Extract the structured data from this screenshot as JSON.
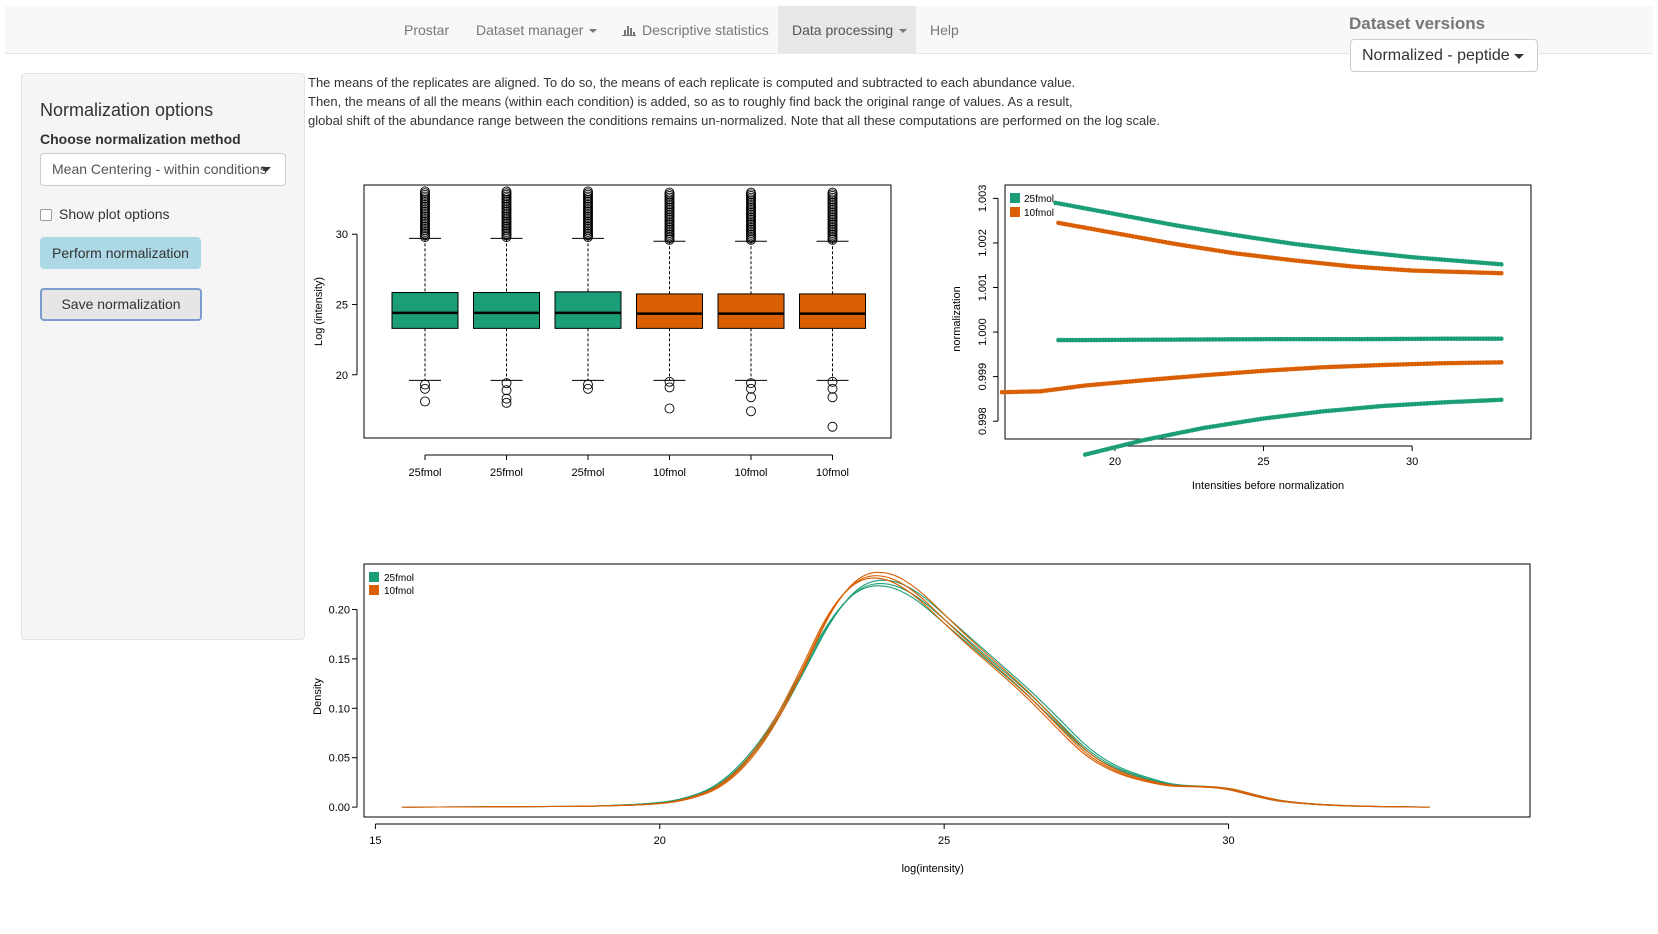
{
  "navbar": {
    "items": [
      {
        "label": "Prostar",
        "dropdown": false,
        "active": false
      },
      {
        "label": "Dataset manager",
        "dropdown": true,
        "active": false
      },
      {
        "label": "Descriptive statistics",
        "icon": "bar-chart-icon",
        "dropdown": false,
        "active": false
      },
      {
        "label": "Data processing",
        "dropdown": true,
        "active": true
      },
      {
        "label": "Help",
        "dropdown": false,
        "active": false
      }
    ],
    "versions_label": "Dataset versions",
    "versions_value": "Normalized - peptide"
  },
  "sidebar": {
    "title": "Normalization options",
    "method_label": "Choose normalization method",
    "method_value": "Mean Centering - within conditions",
    "show_plot_options": "Show plot options",
    "show_plot_options_checked": false,
    "perform_button": "Perform normalization",
    "save_button": "Save normalization"
  },
  "description": [
    "The means of the replicates are aligned. To do so, the means of each replicate is computed and subtracted to each abundance value.",
    "Then, the means of all the means (within each condition) is added, so as to roughly find back the original range of values. As a result,",
    "global shift of the abundance range between the conditions remains un-normalized. Note that all these computations are performed on the log scale."
  ],
  "colors": {
    "cond_25fmol": "#1b9e77",
    "cond_10fmol": "#d95f02",
    "accent_button": "#add8e6"
  },
  "chart_data": [
    {
      "type": "boxplot",
      "ylabel": "Log (intensity)",
      "xlabel": "",
      "ylim": [
        15.5,
        33.5
      ],
      "yticks": [
        20,
        25,
        30
      ],
      "categories": [
        "25fmol",
        "25fmol",
        "25fmol",
        "10fmol",
        "10fmol",
        "10fmol"
      ],
      "conditions": [
        "25fmol",
        "25fmol",
        "25fmol",
        "10fmol",
        "10fmol",
        "10fmol"
      ],
      "q1": [
        23.3,
        23.3,
        23.3,
        23.3,
        23.3,
        23.3
      ],
      "median": [
        24.4,
        24.4,
        24.4,
        24.35,
        24.35,
        24.35
      ],
      "q3": [
        25.85,
        25.85,
        25.9,
        25.75,
        25.75,
        25.75
      ],
      "whisker_low": [
        19.6,
        19.6,
        19.6,
        19.6,
        19.6,
        19.6
      ],
      "whisker_high": [
        29.7,
        29.7,
        29.7,
        29.5,
        29.5,
        29.5
      ],
      "outliers_low": [
        [
          19.3,
          19.0,
          18.1
        ],
        [
          19.4,
          18.9,
          18.3,
          18.0
        ],
        [
          19.3,
          19.0
        ],
        [
          19.5,
          19.1,
          17.6
        ],
        [
          19.4,
          19.0,
          18.4,
          17.4
        ],
        [
          19.5,
          19.0,
          18.4,
          16.3
        ]
      ],
      "outliers_high_range": [
        [
          29.8,
          33.1
        ],
        [
          29.8,
          33.1
        ],
        [
          29.8,
          33.1
        ],
        [
          29.6,
          33.0
        ],
        [
          29.6,
          33.0
        ],
        [
          29.6,
          33.0
        ]
      ]
    },
    {
      "type": "scatter",
      "xlabel": "Intensities before normalization",
      "ylabel": "normalization",
      "xlim": [
        16.3,
        34.0
      ],
      "ylim": [
        0.9976,
        1.0033
      ],
      "xticks": [
        20,
        25,
        30
      ],
      "yticks": [
        0.998,
        0.999,
        1.0,
        1.001,
        1.002,
        1.003
      ],
      "legend_position": "top-left",
      "series": [
        {
          "name": "25fmol",
          "points": [
            [
              18.0,
              1.0029
            ],
            [
              20,
              1.00265
            ],
            [
              22,
              1.0024
            ],
            [
              24,
              1.00218
            ],
            [
              26,
              1.00198
            ],
            [
              28,
              1.00182
            ],
            [
              30,
              1.00168
            ],
            [
              31.5,
              1.0016
            ],
            [
              33,
              1.00152
            ]
          ]
        },
        {
          "name": "25fmol",
          "points": [
            [
              18.1,
              0.99982
            ],
            [
              19,
              0.99982
            ],
            [
              22,
              0.99983
            ],
            [
              25,
              0.99984
            ],
            [
              28,
              0.99984
            ],
            [
              31,
              0.99985
            ],
            [
              33,
              0.99985
            ]
          ]
        },
        {
          "name": "25fmol",
          "points": [
            [
              19.0,
              0.99725
            ],
            [
              21,
              0.99758
            ],
            [
              23,
              0.99785
            ],
            [
              25,
              0.99806
            ],
            [
              27,
              0.99822
            ],
            [
              29,
              0.99834
            ],
            [
              31,
              0.99842
            ],
            [
              33,
              0.99848
            ]
          ]
        },
        {
          "name": "10fmol",
          "points": [
            [
              18.1,
              1.00245
            ],
            [
              20,
              1.00222
            ],
            [
              22,
              1.00198
            ],
            [
              24,
              1.00177
            ],
            [
              26,
              1.00161
            ],
            [
              28,
              1.00147
            ],
            [
              30,
              1.00138
            ],
            [
              33,
              1.00132
            ]
          ]
        },
        {
          "name": "10fmol",
          "points": [
            [
              16.2,
              0.99865
            ],
            [
              17.5,
              0.99867
            ],
            [
              19.0,
              0.9988
            ],
            [
              21,
              0.99892
            ],
            [
              23,
              0.99903
            ],
            [
              25,
              0.99913
            ],
            [
              27,
              0.99921
            ],
            [
              29,
              0.99926
            ],
            [
              31,
              0.9993
            ],
            [
              33,
              0.99932
            ]
          ]
        }
      ]
    },
    {
      "type": "line",
      "xlabel": "log(intensity)",
      "ylabel": "Density",
      "xlim": [
        14.8,
        35.3
      ],
      "ylim": [
        -0.01,
        0.246
      ],
      "xticks": [
        15,
        20,
        25,
        30
      ],
      "yticks": [
        0.0,
        0.05,
        0.1,
        0.15,
        0.2
      ],
      "legend_position": "top-left",
      "series": [
        {
          "name": "25fmol",
          "x": [
            15.5,
            18,
            19,
            20,
            20.5,
            21,
            21.5,
            22,
            22.5,
            23,
            23.5,
            24,
            24.5,
            25,
            25.5,
            26,
            26.5,
            27,
            27.5,
            28,
            28.5,
            29,
            29.5,
            30,
            30.5,
            31,
            32,
            33.5
          ],
          "y": [
            0,
            0.0005,
            0.001,
            0.004,
            0.009,
            0.02,
            0.045,
            0.083,
            0.135,
            0.19,
            0.223,
            0.228,
            0.215,
            0.19,
            0.165,
            0.14,
            0.115,
            0.087,
            0.058,
            0.04,
            0.03,
            0.022,
            0.021,
            0.019,
            0.011,
            0.005,
            0.001,
            0
          ]
        },
        {
          "name": "10fmol",
          "x": [
            15.5,
            18,
            19,
            20,
            20.5,
            21,
            21.5,
            22,
            22.5,
            23,
            23.5,
            24,
            24.5,
            25,
            25.5,
            26,
            26.5,
            27,
            27.5,
            28,
            28.5,
            29,
            29.5,
            30,
            30.5,
            31,
            32,
            33.5
          ],
          "y": [
            0,
            0.0005,
            0.001,
            0.003,
            0.008,
            0.018,
            0.042,
            0.082,
            0.138,
            0.2,
            0.233,
            0.235,
            0.218,
            0.19,
            0.163,
            0.138,
            0.112,
            0.082,
            0.053,
            0.036,
            0.027,
            0.021,
            0.021,
            0.019,
            0.011,
            0.005,
            0.001,
            0
          ]
        }
      ]
    }
  ]
}
